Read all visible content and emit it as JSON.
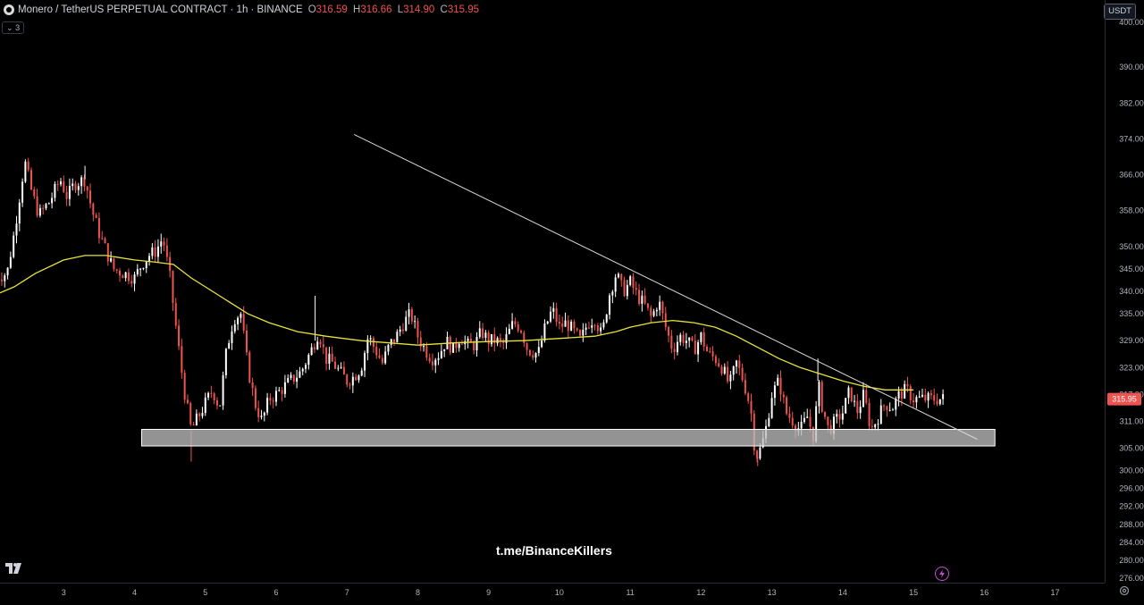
{
  "header": {
    "symbol_title": "Monero / TetherUS PERPETUAL CONTRACT · 1h · BINANCE",
    "ohlc": [
      {
        "key": "O",
        "value": "316.59"
      },
      {
        "key": "H",
        "value": "316.66"
      },
      {
        "key": "L",
        "value": "314.90"
      },
      {
        "key": "C",
        "value": "315.95"
      }
    ],
    "indicator_count": "3",
    "currency": "USDT"
  },
  "colors": {
    "up": "#ffffff",
    "down": "#ef5350",
    "ma": "#e8e33a",
    "trendline": "#d9d9d9",
    "zone_fill": "#bdbdbd",
    "price_label_bg": "#ef5350",
    "bolt_icon": "#c34dd0"
  },
  "watermark": "t.me/BinanceKillers",
  "chart_data": {
    "type": "candlestick",
    "timeframe": "1h",
    "ylim": [
      275,
      405
    ],
    "y_ticks": [
      "400.00",
      "390.00",
      "382.00",
      "374.00",
      "366.00",
      "358.00",
      "350.00",
      "345.00",
      "340.00",
      "335.00",
      "329.00",
      "323.00",
      "317.00",
      "311.00",
      "305.00",
      "300.00",
      "296.00",
      "292.00",
      "288.00",
      "284.00",
      "280.00",
      "276.00"
    ],
    "x_ticks": [
      "3",
      "4",
      "5",
      "6",
      "7",
      "8",
      "9",
      "10",
      "11",
      "12",
      "13",
      "14",
      "15",
      "16",
      "17"
    ],
    "x_start_day": 2.1,
    "x_end_day": 17.7,
    "last_price": "315.95",
    "last_price_value": 315.95,
    "close_path": [
      [
        2.0,
        343
      ],
      [
        2.2,
        344
      ],
      [
        2.3,
        353
      ],
      [
        2.45,
        369
      ],
      [
        2.55,
        362
      ],
      [
        2.65,
        357
      ],
      [
        2.8,
        360
      ],
      [
        2.95,
        365
      ],
      [
        3.05,
        361
      ],
      [
        3.15,
        364
      ],
      [
        3.3,
        365
      ],
      [
        3.4,
        358
      ],
      [
        3.5,
        353
      ],
      [
        3.6,
        349
      ],
      [
        3.7,
        345
      ],
      [
        3.85,
        344
      ],
      [
        4.0,
        343
      ],
      [
        4.1,
        346
      ],
      [
        4.2,
        348
      ],
      [
        4.3,
        349
      ],
      [
        4.4,
        352
      ],
      [
        4.5,
        343
      ],
      [
        4.6,
        330
      ],
      [
        4.7,
        318
      ],
      [
        4.8,
        309
      ],
      [
        4.9,
        312
      ],
      [
        5.0,
        315
      ],
      [
        5.1,
        318
      ],
      [
        5.2,
        314
      ],
      [
        5.3,
        327
      ],
      [
        5.4,
        334
      ],
      [
        5.5,
        335
      ],
      [
        5.6,
        323
      ],
      [
        5.7,
        315
      ],
      [
        5.8,
        311
      ],
      [
        5.9,
        316
      ],
      [
        6.0,
        317
      ],
      [
        6.2,
        320
      ],
      [
        6.35,
        322
      ],
      [
        6.5,
        327
      ],
      [
        6.6,
        331
      ],
      [
        6.7,
        325
      ],
      [
        6.8,
        324
      ],
      [
        6.9,
        322
      ],
      [
        7.0,
        320
      ],
      [
        7.1,
        321
      ],
      [
        7.2,
        323
      ],
      [
        7.3,
        330
      ],
      [
        7.4,
        327
      ],
      [
        7.5,
        324
      ],
      [
        7.6,
        328
      ],
      [
        7.7,
        330
      ],
      [
        7.8,
        333
      ],
      [
        7.9,
        335
      ],
      [
        8.0,
        330
      ],
      [
        8.1,
        327
      ],
      [
        8.2,
        325
      ],
      [
        8.3,
        326
      ],
      [
        8.4,
        329
      ],
      [
        8.5,
        327
      ],
      [
        8.6,
        330
      ],
      [
        8.7,
        328
      ],
      [
        8.8,
        328
      ],
      [
        8.9,
        331
      ],
      [
        9.0,
        329
      ],
      [
        9.1,
        329
      ],
      [
        9.2,
        328
      ],
      [
        9.35,
        333
      ],
      [
        9.45,
        332
      ],
      [
        9.55,
        327
      ],
      [
        9.7,
        326
      ],
      [
        9.8,
        332
      ],
      [
        9.9,
        336
      ],
      [
        10.0,
        332
      ],
      [
        10.1,
        333
      ],
      [
        10.2,
        331
      ],
      [
        10.3,
        329
      ],
      [
        10.4,
        333
      ],
      [
        10.5,
        334
      ],
      [
        10.6,
        330
      ],
      [
        10.7,
        339
      ],
      [
        10.8,
        344
      ],
      [
        10.9,
        340
      ],
      [
        11.0,
        342
      ],
      [
        11.1,
        339
      ],
      [
        11.2,
        337
      ],
      [
        11.3,
        334
      ],
      [
        11.4,
        338
      ],
      [
        11.5,
        332
      ],
      [
        11.6,
        327
      ],
      [
        11.7,
        330
      ],
      [
        11.8,
        329
      ],
      [
        11.9,
        327
      ],
      [
        12.0,
        330
      ],
      [
        12.1,
        326
      ],
      [
        12.2,
        325
      ],
      [
        12.3,
        323
      ],
      [
        12.4,
        319
      ],
      [
        12.5,
        324
      ],
      [
        12.6,
        320
      ],
      [
        12.7,
        314
      ],
      [
        12.75,
        306
      ],
      [
        12.8,
        303
      ],
      [
        12.9,
        308
      ],
      [
        13.0,
        317
      ],
      [
        13.1,
        320
      ],
      [
        13.2,
        313
      ],
      [
        13.3,
        311
      ],
      [
        13.4,
        309
      ],
      [
        13.5,
        312
      ],
      [
        13.6,
        307
      ],
      [
        13.65,
        320
      ],
      [
        13.7,
        315
      ],
      [
        13.8,
        309
      ],
      [
        13.9,
        311
      ],
      [
        14.0,
        313
      ],
      [
        14.1,
        318
      ],
      [
        14.2,
        313
      ],
      [
        14.3,
        317
      ],
      [
        14.4,
        309
      ],
      [
        14.5,
        312
      ],
      [
        14.6,
        315
      ],
      [
        14.7,
        314
      ],
      [
        14.8,
        317
      ],
      [
        14.9,
        318
      ],
      [
        15.0,
        316
      ]
    ],
    "wicks": [
      {
        "day": 3.3,
        "high": 368
      },
      {
        "day": 4.8,
        "low": 302
      },
      {
        "day": 6.55,
        "high": 339
      },
      {
        "day": 12.8,
        "low": 301
      },
      {
        "day": 13.65,
        "high": 325
      }
    ],
    "moving_average": [
      [
        2.0,
        339
      ],
      [
        2.3,
        341
      ],
      [
        2.6,
        344
      ],
      [
        3.0,
        347
      ],
      [
        3.3,
        348
      ],
      [
        3.6,
        348
      ],
      [
        4.0,
        347
      ],
      [
        4.3,
        346.5
      ],
      [
        4.55,
        346
      ],
      [
        4.8,
        343
      ],
      [
        5.0,
        341
      ],
      [
        5.3,
        338
      ],
      [
        5.6,
        335
      ],
      [
        5.9,
        333
      ],
      [
        6.3,
        331
      ],
      [
        6.7,
        330
      ],
      [
        7.2,
        329
      ],
      [
        7.6,
        328.5
      ],
      [
        8.0,
        328
      ],
      [
        8.5,
        328.5
      ],
      [
        9.0,
        328.8
      ],
      [
        9.5,
        329
      ],
      [
        10.0,
        329.5
      ],
      [
        10.5,
        330
      ],
      [
        10.8,
        331
      ],
      [
        11.0,
        332
      ],
      [
        11.3,
        333
      ],
      [
        11.6,
        333.5
      ],
      [
        11.9,
        333
      ],
      [
        12.2,
        332
      ],
      [
        12.5,
        330
      ],
      [
        12.8,
        327.5
      ],
      [
        13.1,
        325
      ],
      [
        13.4,
        323
      ],
      [
        13.7,
        321.5
      ],
      [
        14.0,
        320
      ],
      [
        14.3,
        318.8
      ],
      [
        14.6,
        318
      ],
      [
        14.85,
        318
      ],
      [
        15.0,
        318
      ]
    ],
    "trendline": {
      "from": [
        7.1,
        375
      ],
      "to": [
        15.9,
        307
      ]
    },
    "support_zone": {
      "day_from": 4.1,
      "day_to": 16.15,
      "price_low": 305.5,
      "price_high": 309.2
    }
  }
}
